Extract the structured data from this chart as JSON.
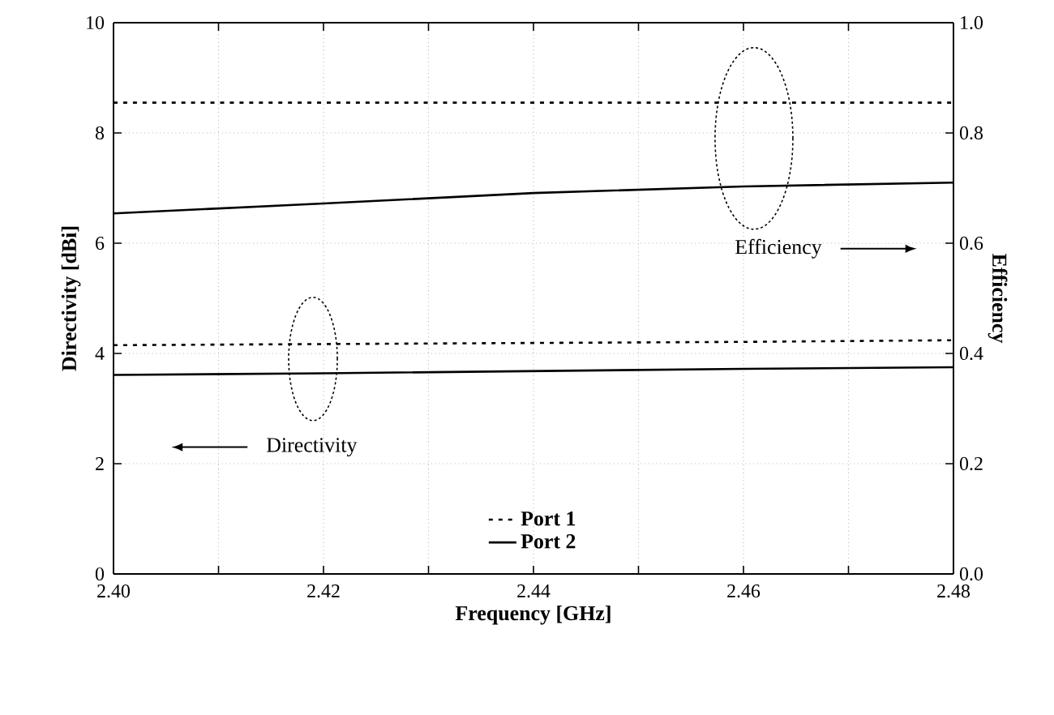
{
  "chart_data": {
    "type": "line",
    "xlabel": "Frequency [GHz]",
    "ylabel": "Directivity [dBi]",
    "y2label": "Efficiency",
    "x": [
      2.4,
      2.42,
      2.44,
      2.46,
      2.48
    ],
    "series": [
      {
        "name": "Port 1",
        "color": "#000000",
        "line_style": "dotted",
        "values": [
          4.15,
          4.17,
          4.19,
          4.21,
          4.24
        ]
      },
      {
        "name": "Port 2",
        "color": "#000000",
        "line_style": "solid",
        "values": [
          3.61,
          3.64,
          3.68,
          3.72,
          3.75
        ]
      },
      {
        "color": "#000000",
        "line_style": "dotted",
        "axis": "y2",
        "values": [
          0.855,
          0.855,
          0.855,
          0.855,
          0.855
        ]
      },
      {
        "color": "#000000",
        "line_style": "solid",
        "axis": "y2",
        "values": [
          0.654,
          0.672,
          0.691,
          0.703,
          0.71
        ]
      }
    ],
    "xlim": [
      2.4,
      2.48
    ],
    "xticks": [
      {
        "value": 2.4,
        "label": "2.40"
      },
      {
        "value": 2.41,
        "label": null
      },
      {
        "value": 2.42,
        "label": "2.42"
      },
      {
        "value": 2.43,
        "label": null
      },
      {
        "value": 2.44,
        "label": "2.44"
      },
      {
        "value": 2.45,
        "label": null
      },
      {
        "value": 2.46,
        "label": "2.46"
      },
      {
        "value": 2.47,
        "label": null
      },
      {
        "value": 2.48,
        "label": "2.48"
      }
    ],
    "ylim": [
      0,
      10
    ],
    "yticks": [
      0,
      2,
      4,
      6,
      8,
      10
    ],
    "y2lim": [
      0.0,
      1.0
    ],
    "y2ticks": [
      {
        "value": 0.0,
        "label": "0.0"
      },
      {
        "value": 0.2,
        "label": "0.2"
      },
      {
        "value": 0.4,
        "label": "0.4"
      },
      {
        "value": 0.6,
        "label": "0.6"
      },
      {
        "value": 0.8,
        "label": "0.8"
      },
      {
        "value": 1.0,
        "label": "1.0"
      }
    ],
    "grid": true,
    "legend": "bottom",
    "marker": "none",
    "annotations": [
      "Efficiency",
      "Directivity"
    ]
  }
}
